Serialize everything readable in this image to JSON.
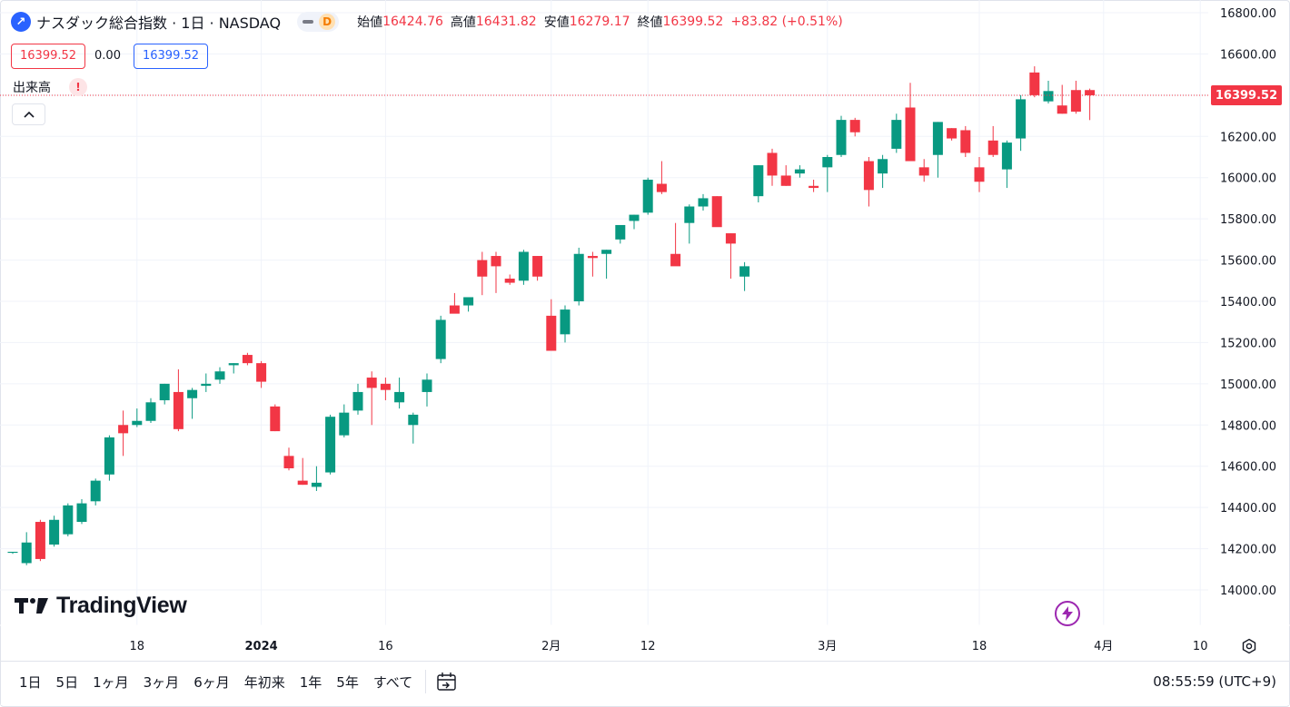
{
  "symbol": {
    "logo_glyph": "↗",
    "title": "ナスダック総合指数 · 1日 · NASDAQ",
    "market_status_badge": "D"
  },
  "ohlc": {
    "open_label": "始値",
    "open": "16424.76",
    "high_label": "高値",
    "high": "16431.82",
    "low_label": "安値",
    "low": "16279.17",
    "close_label": "終値",
    "close": "16399.52",
    "change": "+83.82 (+0.51%)"
  },
  "trade": {
    "sell_price": "16399.52",
    "spread": "0.00",
    "buy_price": "16399.52"
  },
  "volume": {
    "label": "出来高",
    "warning": "!"
  },
  "brand": {
    "logo_text": "TradingView"
  },
  "last_price_tag": "16399.52",
  "colors": {
    "up": "#089981",
    "down": "#f23645",
    "accent": "#2962ff",
    "grid": "#f0f3fa"
  },
  "icons": [
    "chevron-up-icon",
    "lightning-icon",
    "gear-icon",
    "calendar-goto-icon",
    "tradingview-logo-icon"
  ],
  "bottom_bar": {
    "ranges": [
      "1日",
      "5日",
      "1ヶ月",
      "3ヶ月",
      "6ヶ月",
      "年初来",
      "1年",
      "5年",
      "すべて"
    ],
    "clock": "08:55:59 (UTC+9)"
  },
  "chart_data": {
    "type": "candlestick",
    "title": "ナスダック総合指数 · 1日 · NASDAQ",
    "ylim": [
      13810,
      16880
    ],
    "y_ticks": [
      14000,
      14200,
      14400,
      14600,
      14800,
      15000,
      15200,
      15400,
      15600,
      15800,
      16000,
      16200,
      16400,
      16600,
      16800
    ],
    "y_tick_labels": [
      "14000.00",
      "14200.00",
      "14400.00",
      "14600.00",
      "14800.00",
      "15000.00",
      "15200.00",
      "15400.00",
      "15600.00",
      "15800.00",
      "16000.00",
      "16200.00",
      "16400.00",
      "16600.00",
      "16800.00"
    ],
    "x_tick_labels": [
      {
        "label": "18",
        "index": 9
      },
      {
        "label": "2024",
        "index": 18
      },
      {
        "label": "16",
        "index": 27
      },
      {
        "label": "2月",
        "index": 39
      },
      {
        "label": "12",
        "index": 46
      },
      {
        "label": "3月",
        "index": 59
      },
      {
        "label": "18",
        "index": 70
      },
      {
        "label": "4月",
        "index": 79
      },
      {
        "label": "10",
        "index": 86
      }
    ],
    "grid": true,
    "last_price": 16399.52,
    "candles": [
      [
        14180,
        14185,
        14175,
        14185
      ],
      [
        14130,
        14280,
        14120,
        14230
      ],
      [
        14330,
        14340,
        14140,
        14150
      ],
      [
        14220,
        14360,
        14210,
        14340
      ],
      [
        14270,
        14420,
        14260,
        14410
      ],
      [
        14330,
        14440,
        14320,
        14420
      ],
      [
        14430,
        14540,
        14410,
        14530
      ],
      [
        14560,
        14750,
        14530,
        14740
      ],
      [
        14800,
        14870,
        14650,
        14760
      ],
      [
        14800,
        14880,
        14790,
        14820
      ],
      [
        14820,
        14930,
        14810,
        14910
      ],
      [
        14920,
        15000,
        14900,
        15000
      ],
      [
        14960,
        15070,
        14770,
        14780
      ],
      [
        14930,
        14980,
        14830,
        14970
      ],
      [
        14990,
        15050,
        14960,
        15000
      ],
      [
        15020,
        15080,
        15000,
        15060
      ],
      [
        15090,
        15100,
        15050,
        15100
      ],
      [
        15140,
        15150,
        15090,
        15100
      ],
      [
        15100,
        15110,
        14980,
        15010
      ],
      [
        14890,
        14900,
        14770,
        14770
      ],
      [
        14650,
        14690,
        14580,
        14590
      ],
      [
        14530,
        14640,
        14510,
        14510
      ],
      [
        14500,
        14600,
        14480,
        14520
      ],
      [
        14570,
        14850,
        14560,
        14840
      ],
      [
        14750,
        14900,
        14740,
        14860
      ],
      [
        14870,
        15000,
        14850,
        14960
      ],
      [
        15030,
        15060,
        14800,
        14980
      ],
      [
        15000,
        15030,
        14920,
        14970
      ],
      [
        14910,
        15030,
        14880,
        14960
      ],
      [
        14800,
        14860,
        14710,
        14850
      ],
      [
        14960,
        15050,
        14890,
        15020
      ],
      [
        15120,
        15330,
        15100,
        15310
      ],
      [
        15380,
        15440,
        15350,
        15340
      ],
      [
        15380,
        15410,
        15350,
        15420
      ],
      [
        15600,
        15640,
        15430,
        15520
      ],
      [
        15620,
        15640,
        15440,
        15570
      ],
      [
        15510,
        15530,
        15480,
        15490
      ],
      [
        15500,
        15650,
        15480,
        15640
      ],
      [
        15620,
        15620,
        15500,
        15520
      ],
      [
        15330,
        15410,
        15170,
        15160
      ],
      [
        15240,
        15380,
        15200,
        15360
      ],
      [
        15400,
        15660,
        15380,
        15630
      ],
      [
        15620,
        15640,
        15520,
        15610
      ],
      [
        15630,
        15650,
        15510,
        15650
      ],
      [
        15700,
        15760,
        15680,
        15770
      ],
      [
        15790,
        15820,
        15750,
        15820
      ],
      [
        15830,
        16000,
        15820,
        15990
      ],
      [
        15970,
        16080,
        15920,
        15930
      ],
      [
        15630,
        15780,
        15580,
        15570
      ],
      [
        15780,
        15870,
        15680,
        15860
      ],
      [
        15860,
        15920,
        15840,
        15900
      ],
      [
        15910,
        15910,
        15770,
        15760
      ],
      [
        15730,
        15730,
        15510,
        15680
      ],
      [
        15520,
        15590,
        15450,
        15570
      ],
      [
        15910,
        16060,
        15880,
        16060
      ],
      [
        16120,
        16140,
        15960,
        16010
      ],
      [
        16010,
        16060,
        15960,
        15960
      ],
      [
        16020,
        16060,
        16000,
        16040
      ],
      [
        15960,
        15990,
        15930,
        15950
      ],
      [
        16050,
        16110,
        15930,
        16100
      ],
      [
        16110,
        16300,
        16100,
        16280
      ],
      [
        16280,
        16290,
        16200,
        16220
      ],
      [
        16080,
        16100,
        15860,
        15940
      ],
      [
        16020,
        16110,
        15950,
        16090
      ],
      [
        16140,
        16310,
        16120,
        16280
      ],
      [
        16340,
        16460,
        16080,
        16080
      ],
      [
        16050,
        16090,
        15980,
        16010
      ],
      [
        16110,
        16270,
        16000,
        16270
      ],
      [
        16240,
        16240,
        16180,
        16190
      ],
      [
        16230,
        16250,
        16100,
        16120
      ],
      [
        16050,
        16100,
        15930,
        15980
      ],
      [
        16180,
        16250,
        16100,
        16110
      ],
      [
        16040,
        16180,
        15950,
        16170
      ],
      [
        16190,
        16400,
        16130,
        16380
      ],
      [
        16510,
        16540,
        16390,
        16400
      ],
      [
        16370,
        16470,
        16360,
        16420
      ],
      [
        16350,
        16450,
        16310,
        16310
      ],
      [
        16424.76,
        16470,
        16310,
        16320
      ],
      [
        16424.76,
        16431.82,
        16279.17,
        16399.52
      ]
    ]
  }
}
